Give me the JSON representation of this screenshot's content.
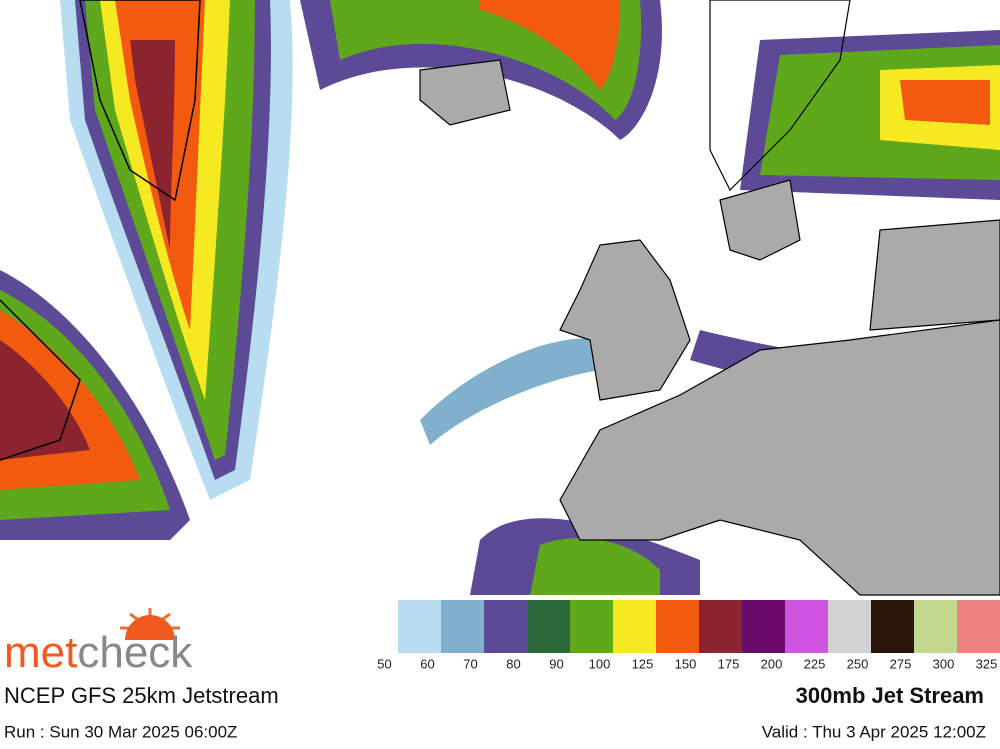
{
  "brand": {
    "part1": "met",
    "part2": "check"
  },
  "legend": {
    "bins": [
      50,
      60,
      70,
      80,
      90,
      100,
      125,
      150,
      175,
      200,
      225,
      250,
      275,
      300,
      325
    ],
    "colors": [
      "#b8dcf0",
      "#80b0cc",
      "#5c4a96",
      "#2b6a38",
      "#60a81b",
      "#f5ea22",
      "#f25a10",
      "#8c2430",
      "#6a0a6a",
      "#d055e0",
      "#d2d2d2",
      "#2a150a",
      "#c3d88f",
      "#ee8282"
    ]
  },
  "footer": {
    "model": "NCEP GFS 25km Jetstream",
    "product": "300mb Jet Stream",
    "run": "Run : Sun 30 Mar 2025 06:00Z",
    "valid": "Valid : Thu 3 Apr 2025 12:00Z"
  }
}
